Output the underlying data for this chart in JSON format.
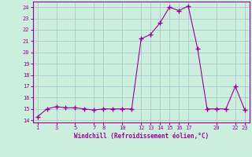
{
  "x_data": [
    1,
    2,
    3,
    4,
    5,
    6,
    7,
    8,
    9,
    10,
    11,
    12,
    13,
    14,
    15,
    16,
    17,
    18,
    19,
    20,
    21,
    22,
    23
  ],
  "y_data": [
    14.3,
    15.0,
    15.2,
    15.1,
    15.1,
    15.0,
    14.9,
    15.0,
    15.0,
    15.0,
    15.0,
    21.2,
    21.6,
    22.6,
    24.0,
    23.7,
    24.1,
    20.3,
    15.0,
    15.0,
    15.0,
    17.0,
    14.9
  ],
  "xticks": [
    1,
    3,
    5,
    7,
    8,
    10,
    12,
    13,
    14,
    15,
    16,
    17,
    20,
    22,
    23
  ],
  "yticks": [
    14,
    15,
    16,
    17,
    18,
    19,
    20,
    21,
    22,
    23,
    24
  ],
  "ylim": [
    13.8,
    24.5
  ],
  "xlim": [
    0.5,
    23.5
  ],
  "xlabel": "Windchill (Refroidissement éolien,°C)",
  "line_color": "#990099",
  "marker": "+",
  "markersize": 4,
  "bg_color": "#cceedd",
  "grid_color": "#aabbcc",
  "xlabel_color": "#990099",
  "tick_color": "#990099"
}
